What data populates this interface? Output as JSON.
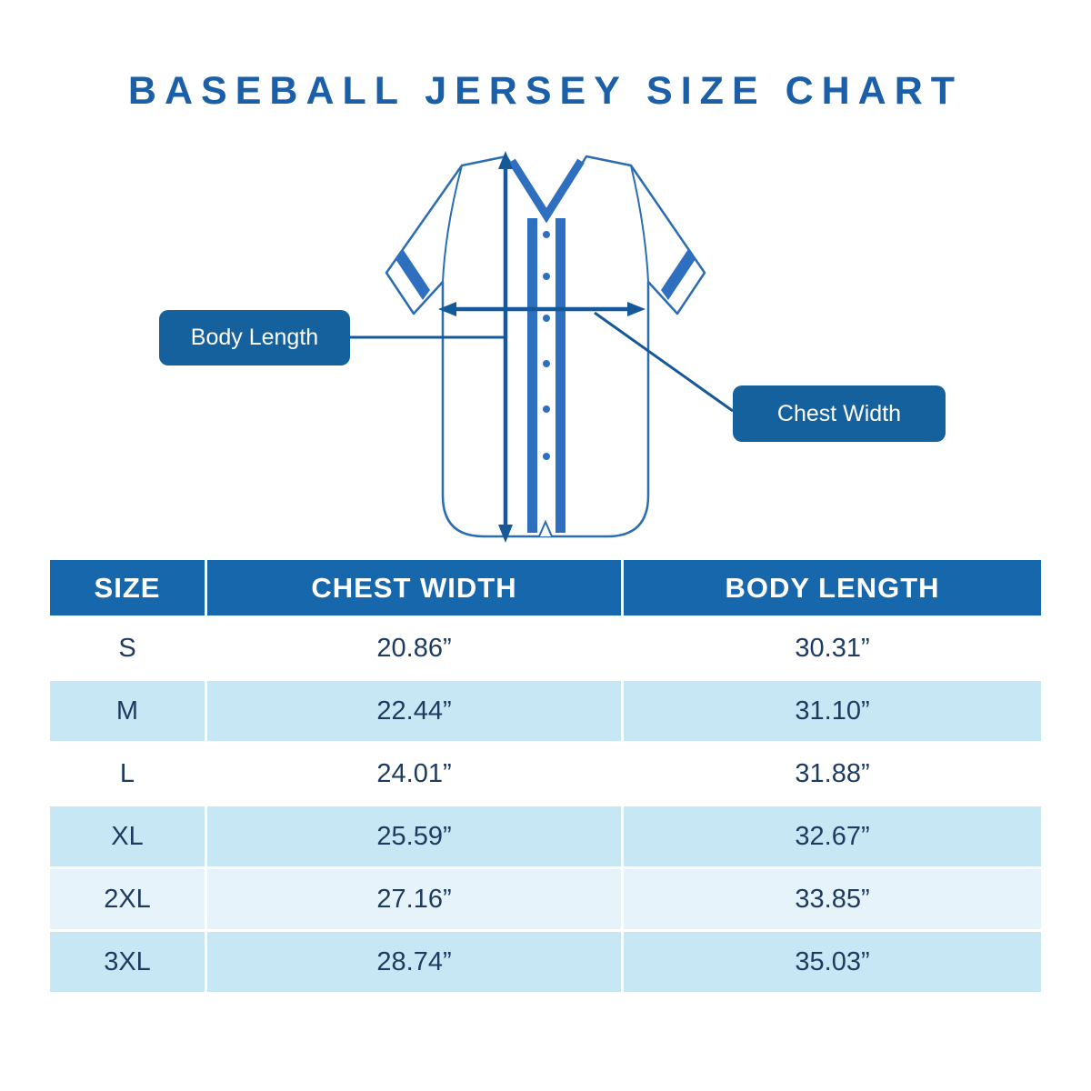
{
  "page": {
    "title": "BASEBALL JERSEY SIZE CHART"
  },
  "diagram": {
    "labels": {
      "body_length": "Body Length",
      "chest_width": "Chest Width"
    }
  },
  "table": {
    "headers": [
      "SIZE",
      "CHEST WIDTH",
      "BODY LENGTH"
    ],
    "rows": [
      {
        "size": "S",
        "chest_width": "20.86”",
        "body_length": "30.31”"
      },
      {
        "size": "M",
        "chest_width": "22.44”",
        "body_length": "31.10”"
      },
      {
        "size": "L",
        "chest_width": "24.01”",
        "body_length": "31.88”"
      },
      {
        "size": "XL",
        "chest_width": "25.59”",
        "body_length": "32.67”"
      },
      {
        "size": "2XL",
        "chest_width": "27.16”",
        "body_length": "33.85”"
      },
      {
        "size": "3XL",
        "chest_width": "28.74”",
        "body_length": "35.03”"
      }
    ]
  },
  "colors": {
    "title": "#1a5fa8",
    "table_header_bg": "#1767ac",
    "header_text": "#ffffff",
    "row_alt": "#c8e7f5",
    "row_alt_light": "#e7f3fa",
    "table_text": "#1d3a5f",
    "label_bg": "#15619e",
    "label_text": "#ffffff",
    "jersey_line": "#2a6db3",
    "jersey_accent": "#2f6fc0",
    "arrow": "#15599b"
  },
  "chart_data": {
    "type": "table",
    "title": "BASEBALL JERSEY SIZE CHART",
    "columns": [
      "SIZE",
      "CHEST WIDTH",
      "BODY LENGTH"
    ],
    "rows": [
      [
        "S",
        "20.86”",
        "30.31”"
      ],
      [
        "M",
        "22.44”",
        "31.10”"
      ],
      [
        "L",
        "24.01”",
        "31.88”"
      ],
      [
        "XL",
        "25.59”",
        "32.67”"
      ],
      [
        "2XL",
        "27.16”",
        "33.85”"
      ],
      [
        "3XL",
        "28.74”",
        "35.03”"
      ]
    ],
    "units": "inches",
    "annotations": [
      "Body Length",
      "Chest Width"
    ]
  }
}
